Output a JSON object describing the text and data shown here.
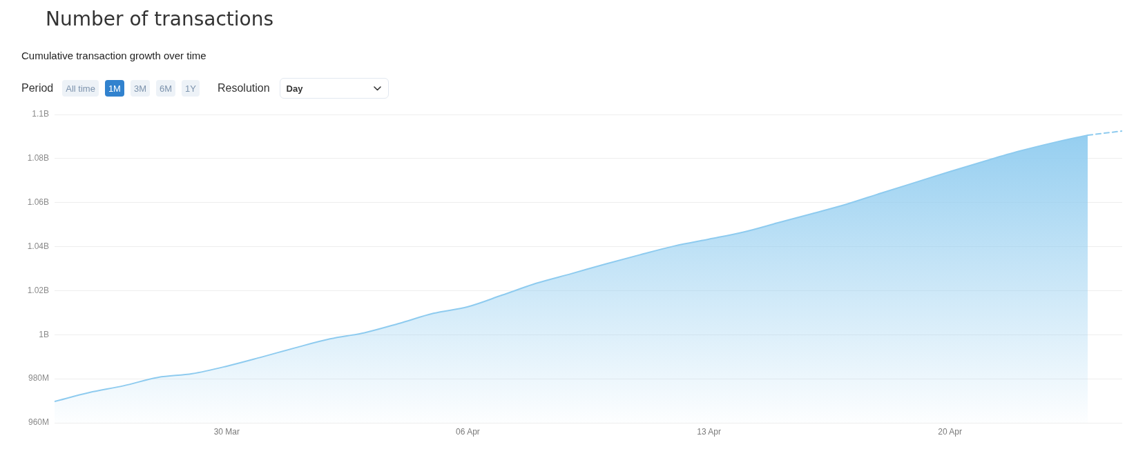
{
  "chart_data": {
    "type": "area",
    "title": "Number of transactions",
    "subtitle": "Cumulative transaction growth over time",
    "annotations": [
      "Period",
      "All time",
      "1M",
      "3M",
      "6M",
      "1Y",
      "Resolution",
      "Day"
    ],
    "series": [
      {
        "color": "#8ecbef",
        "x": [
          "--03-25",
          "--03-26",
          "--03-27",
          "--03-28",
          "--03-29",
          "--03-30",
          "--03-31",
          "--04-01",
          "--04-02",
          "--04-03",
          "--04-04",
          "--04-05",
          "--04-06",
          "--04-07",
          "--04-08",
          "--04-09",
          "--04-10",
          "--04-11",
          "--04-12",
          "--04-13",
          "--04-14",
          "--04-15",
          "--04-16",
          "--04-17",
          "--04-18",
          "--04-19",
          "--04-20",
          "--04-21",
          "--04-22",
          "--04-23",
          "--04-24"
        ],
        "values": [
          969700000,
          973700000,
          976800000,
          980600000,
          982300000,
          985700000,
          989800000,
          994100000,
          998100000,
          1000900000,
          1005100000,
          1009700000,
          1012700000,
          1018000000,
          1023400000,
          1027700000,
          1032100000,
          1036300000,
          1040300000,
          1043400000,
          1046600000,
          1050800000,
          1055000000,
          1059300000,
          1064300000,
          1069200000,
          1074100000,
          1078800000,
          1083300000,
          1087200000,
          1090600000
        ]
      },
      {
        "type": "line",
        "line_style": "dashed",
        "color": "#8ecbef",
        "x": [
          "--04-24",
          "--04-25"
        ],
        "values": [
          1090600000,
          1092500000
        ]
      }
    ],
    "xlim": [
      "--03-25",
      "--04-25"
    ],
    "xticks": [
      {
        "value": "--03-30",
        "label": "30 Mar"
      },
      {
        "value": "--04-06",
        "label": "06 Apr"
      },
      {
        "value": "--04-13",
        "label": "13 Apr"
      },
      {
        "value": "--04-20",
        "label": "20 Apr"
      }
    ],
    "ylim": [
      960000000,
      1100000000
    ],
    "yticks": [
      {
        "value": 960000000,
        "label": "960M"
      },
      {
        "value": 980000000,
        "label": "980M"
      },
      {
        "value": 1000000000,
        "label": "1B"
      },
      {
        "value": 1020000000,
        "label": "1.02B"
      },
      {
        "value": 1040000000,
        "label": "1.04B"
      },
      {
        "value": 1060000000,
        "label": "1.06B"
      },
      {
        "value": 1080000000,
        "label": "1.08B"
      },
      {
        "value": 1100000000,
        "label": "1.1B"
      }
    ],
    "grid": "y",
    "marker": "none"
  }
}
